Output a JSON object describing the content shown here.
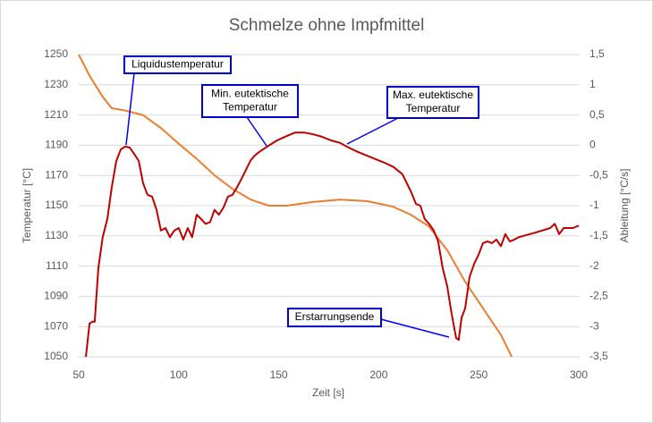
{
  "chart_data": {
    "type": "line",
    "title": "Schmelze ohne Impfmittel",
    "x_label": "Zeit [s]",
    "y_label": "Temperatur [°C]",
    "y2_label": "Ableitung [°C/s]",
    "xlim": [
      50,
      300
    ],
    "xticks": [
      50,
      100,
      150,
      200,
      250,
      300
    ],
    "ylim": [
      1050,
      1250
    ],
    "yticks": [
      1050,
      1070,
      1090,
      1110,
      1130,
      1150,
      1170,
      1190,
      1210,
      1230,
      1250
    ],
    "y2lim": [
      -3.5,
      1.5
    ],
    "y2ticks": [
      {
        "value": -3.5,
        "label": "-3,5"
      },
      -3,
      {
        "value": -2.5,
        "label": "-2,5"
      },
      -2,
      {
        "value": -1.5,
        "label": "-1,5"
      },
      -1,
      {
        "value": -0.5,
        "label": "-0,5"
      },
      0,
      {
        "value": 0.5,
        "label": "0,5"
      },
      1,
      {
        "value": 1.5,
        "label": "1,5"
      }
    ],
    "grid": true,
    "series": [
      {
        "color": "#ed7d31",
        "x": [
          50,
          55.4,
          62,
          66.5,
          73,
          82,
          91,
          100,
          109,
          118,
          127,
          136,
          145,
          154,
          167,
          180.5,
          194,
          207,
          216,
          225,
          234.3,
          243.2,
          252.2,
          261.2,
          266.5
        ],
        "values": [
          1250,
          1236,
          1222,
          1214.5,
          1213,
          1210,
          1201.5,
          1191,
          1181,
          1170,
          1161,
          1154,
          1150,
          1150,
          1152.4,
          1154,
          1153,
          1149.4,
          1144,
          1136.4,
          1120.4,
          1099.7,
          1082,
          1064.3,
          1050
        ]
      },
      {
        "color": "#c00000",
        "axis": "y2",
        "x": [
          53.6,
          55.4,
          56.7,
          58,
          59.8,
          62,
          64.3,
          66.5,
          68.8,
          71,
          73.3,
          75.5,
          77.7,
          80,
          82.2,
          84.4,
          86.7,
          88.9,
          91.1,
          93.4,
          95.6,
          97.8,
          100,
          102.3,
          104.5,
          106.7,
          109,
          111.2,
          113.4,
          115.7,
          117.9,
          120.1,
          122.4,
          124.6,
          126.9,
          129.1,
          131.3,
          133.6,
          135.8,
          138,
          140.3,
          144.8,
          149.2,
          153.8,
          158.2,
          162.7,
          167.2,
          171.6,
          176.1,
          180.6,
          185,
          189.5,
          194,
          198.4,
          202.9,
          207.4,
          211.8,
          214.1,
          216.3,
          218.6,
          220.8,
          223,
          225.2,
          227.5,
          229.7,
          232,
          234.2,
          236.4,
          238.7,
          240,
          241.4,
          243.2,
          245.4,
          247.7,
          249.9,
          252.1,
          254.4,
          256.6,
          258.8,
          261.1,
          263.3,
          265.5,
          267.8,
          270,
          279,
          285.7,
          288,
          290.2,
          292.5,
          297,
          300
        ],
        "values": [
          -3.5,
          -2.95,
          -2.92,
          -2.92,
          -2.04,
          -1.52,
          -1.22,
          -0.7,
          -0.26,
          -0.07,
          -0.02,
          -0.04,
          -0.14,
          -0.26,
          -0.63,
          -0.82,
          -0.85,
          -1.07,
          -1.41,
          -1.37,
          -1.52,
          -1.41,
          -1.37,
          -1.56,
          -1.37,
          -1.52,
          -1.15,
          -1.22,
          -1.3,
          -1.27,
          -1.07,
          -1.15,
          -1.03,
          -0.85,
          -0.82,
          -0.7,
          -0.56,
          -0.41,
          -0.26,
          -0.17,
          -0.11,
          -0.01,
          0.08,
          0.15,
          0.21,
          0.21,
          0.18,
          0.14,
          0.08,
          0.04,
          -0.04,
          -0.11,
          -0.17,
          -0.23,
          -0.29,
          -0.36,
          -0.48,
          -0.63,
          -0.78,
          -0.97,
          -1.0,
          -1.22,
          -1.3,
          -1.41,
          -1.59,
          -2.04,
          -2.33,
          -2.78,
          -3.19,
          -3.22,
          -2.85,
          -2.7,
          -2.18,
          -1.96,
          -1.81,
          -1.62,
          -1.59,
          -1.62,
          -1.56,
          -1.67,
          -1.47,
          -1.59,
          -1.56,
          -1.52,
          -1.44,
          -1.37,
          -1.3,
          -1.47,
          -1.37,
          -1.37,
          -1.33
        ]
      }
    ],
    "annotations": [
      {
        "text": [
          "Liquidustemperatur"
        ]
      },
      {
        "text": [
          "Min. eutektische",
          "Temperatur"
        ]
      },
      {
        "text": [
          "Max. eutektische",
          "Temperatur"
        ]
      },
      {
        "text": [
          "Erstarrungsende"
        ]
      }
    ]
  }
}
